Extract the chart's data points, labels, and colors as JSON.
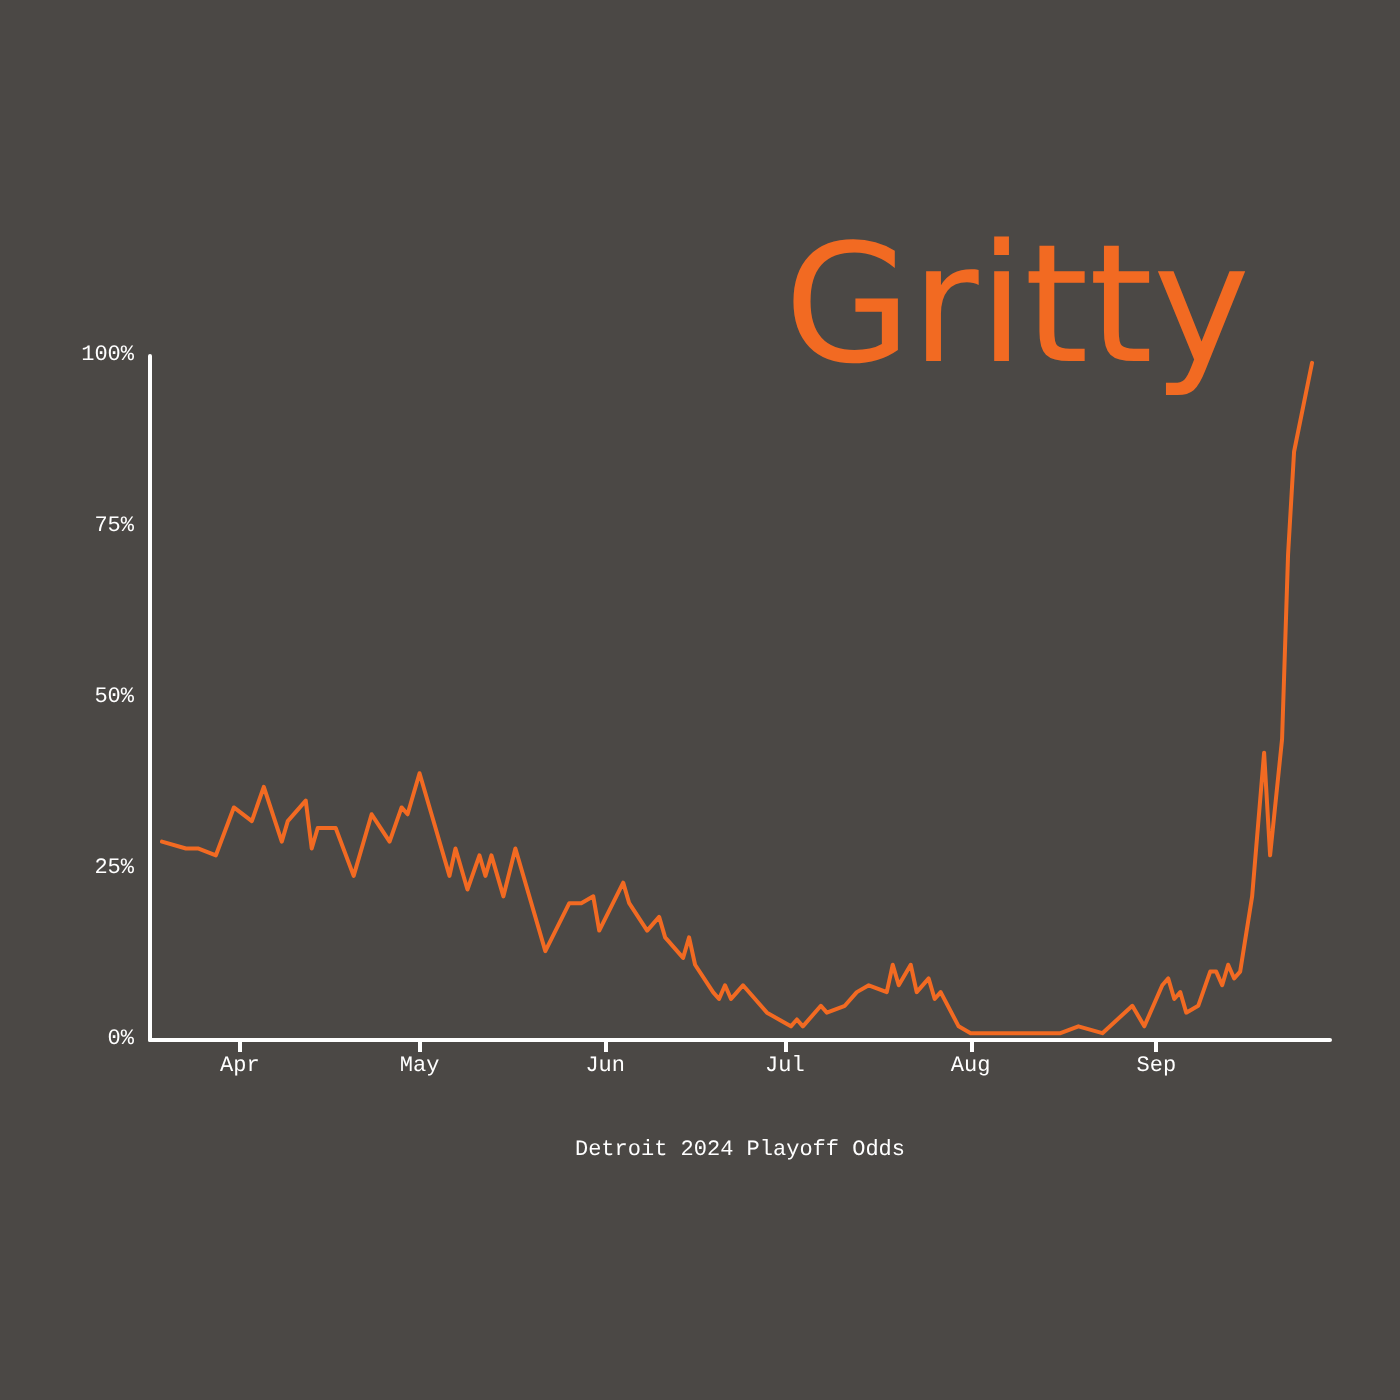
{
  "chart_data": {
    "type": "line",
    "xlabel": "Detroit 2024 Playoff Odds",
    "annotations": [
      "Gritty"
    ],
    "x": [
      "2024-03-19",
      "2024-03-23",
      "2024-03-25",
      "2024-03-28",
      "2024-03-31",
      "2024-04-03",
      "2024-04-05",
      "2024-04-08",
      "2024-04-09",
      "2024-04-12",
      "2024-04-13",
      "2024-04-14",
      "2024-04-17",
      "2024-04-20",
      "2024-04-23",
      "2024-04-26",
      "2024-04-28",
      "2024-04-29",
      "2024-05-01",
      "2024-05-03",
      "2024-05-06",
      "2024-05-07",
      "2024-05-09",
      "2024-05-11",
      "2024-05-12",
      "2024-05-13",
      "2024-05-15",
      "2024-05-17",
      "2024-05-22",
      "2024-05-26",
      "2024-05-28",
      "2024-05-30",
      "2024-05-31",
      "2024-06-04",
      "2024-06-05",
      "2024-06-08",
      "2024-06-10",
      "2024-06-11",
      "2024-06-14",
      "2024-06-15",
      "2024-06-16",
      "2024-06-19",
      "2024-06-20",
      "2024-06-21",
      "2024-06-22",
      "2024-06-23",
      "2024-06-24",
      "2024-06-28",
      "2024-06-30",
      "2024-07-02",
      "2024-07-03",
      "2024-07-04",
      "2024-07-07",
      "2024-07-08",
      "2024-07-11",
      "2024-07-13",
      "2024-07-15",
      "2024-07-18",
      "2024-07-19",
      "2024-07-20",
      "2024-07-22",
      "2024-07-23",
      "2024-07-25",
      "2024-07-26",
      "2024-07-27",
      "2024-07-30",
      "2024-08-01",
      "2024-08-07",
      "2024-08-12",
      "2024-08-16",
      "2024-08-19",
      "2024-08-23",
      "2024-08-28",
      "2024-08-30",
      "2024-09-02",
      "2024-09-03",
      "2024-09-04",
      "2024-09-05",
      "2024-09-06",
      "2024-09-08",
      "2024-09-10",
      "2024-09-11",
      "2024-09-12",
      "2024-09-13",
      "2024-09-14",
      "2024-09-15",
      "2024-09-17",
      "2024-09-19",
      "2024-09-20",
      "2024-09-22",
      "2024-09-23",
      "2024-09-24",
      "2024-09-27"
    ],
    "series": [
      {
        "color": "#f26a22",
        "values": [
          29,
          28,
          28,
          27,
          34,
          32,
          37,
          29,
          32,
          35,
          28,
          31,
          31,
          24,
          33,
          29,
          34,
          33,
          39,
          33,
          24,
          28,
          22,
          27,
          24,
          27,
          21,
          28,
          13,
          20,
          20,
          21,
          16,
          23,
          20,
          16,
          18,
          15,
          12,
          15,
          11,
          7,
          6,
          8,
          6,
          7,
          8,
          4,
          3,
          2,
          3,
          2,
          5,
          4,
          5,
          7,
          8,
          7,
          11,
          8,
          11,
          7,
          9,
          6,
          7,
          2,
          1,
          1,
          1,
          1,
          2,
          1,
          5,
          2,
          8,
          9,
          6,
          7,
          4,
          5,
          10,
          10,
          8,
          11,
          9,
          10,
          21,
          42,
          27,
          44,
          71,
          86,
          99
        ]
      }
    ],
    "xlim": [
      "2024-03-17",
      "2024-09-30"
    ],
    "xticks": [
      {
        "value": "2024-04-01",
        "label": "Apr"
      },
      {
        "value": "2024-05-01",
        "label": "May"
      },
      {
        "value": "2024-06-01",
        "label": "Jun"
      },
      {
        "value": "2024-07-01",
        "label": "Jul"
      },
      {
        "value": "2024-08-01",
        "label": "Aug"
      },
      {
        "value": "2024-09-01",
        "label": "Sep"
      }
    ],
    "ylim": [
      0,
      100
    ],
    "yticks": [
      {
        "value": 0,
        "label": "0%"
      },
      {
        "value": 25,
        "label": "25%"
      },
      {
        "value": 50,
        "label": "50%"
      },
      {
        "value": 75,
        "label": "75%"
      },
      {
        "value": 100,
        "label": "100%"
      }
    ],
    "grid": false,
    "marker": "none",
    "line_style": "solid"
  }
}
